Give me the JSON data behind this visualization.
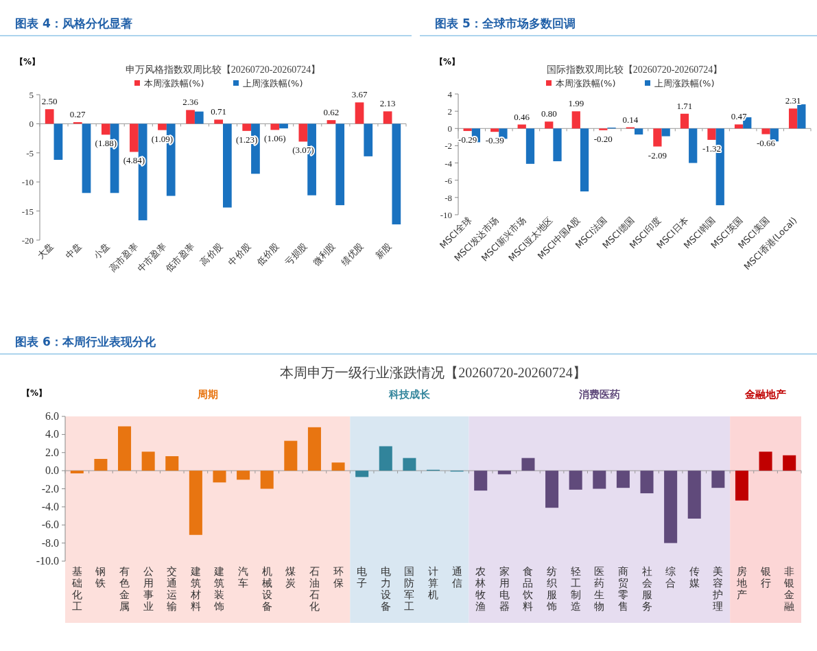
{
  "chart_data": [
    {
      "type": "bar",
      "title": "图表 4：风格分化显著",
      "subtitle": "申万风格指数双周比较【20260720-20260724】",
      "ylabel": "【%】",
      "legend": "top",
      "ylim": [
        -20,
        5
      ],
      "yticks": [
        -20,
        -15,
        -10,
        -5,
        0,
        5
      ],
      "categories": [
        "大盘",
        "中盘",
        "小盘",
        "高市盈率",
        "中市盈率",
        "低市盈率",
        "高价股",
        "中价股",
        "低价股",
        "亏损股",
        "微利股",
        "绩优股",
        "新股"
      ],
      "series": [
        {
          "name": "本周涨跌幅(%)",
          "color": "#f5333b",
          "values": [
            2.5,
            0.27,
            -1.88,
            -4.84,
            -1.09,
            2.36,
            0.71,
            -1.23,
            -1.06,
            -3.07,
            0.62,
            3.67,
            2.13
          ],
          "value_labels": [
            "2.50",
            "0.27",
            "(1.88)",
            "(4.84)",
            "(1.09)",
            "2.36",
            "0.71",
            "(1.23)",
            "(1.06)",
            "(3.07)",
            "0.62",
            "3.67",
            "2.13"
          ]
        },
        {
          "name": "上周涨跌幅(%)",
          "color": "#1a72c0",
          "values": [
            -6.2,
            -11.9,
            -11.9,
            -16.6,
            -12.4,
            2.1,
            -14.4,
            -8.6,
            -0.8,
            -12.3,
            -14.0,
            -5.6,
            -17.3
          ]
        }
      ]
    },
    {
      "type": "bar",
      "title": "图表 5：全球市场多数回调",
      "subtitle": "国际指数双周比较【20260720-20260724】",
      "ylabel": "【%】",
      "legend": "top",
      "ylim": [
        -10,
        4
      ],
      "yticks": [
        -10,
        -8,
        -6,
        -4,
        -2,
        0,
        2,
        4
      ],
      "categories": [
        "MSCI全球",
        "MSCI发达市场",
        "MSCI新兴市场",
        "MSCI亚太地区",
        "MSCI中国A股",
        "MSCI法国",
        "MSCI德国",
        "MSCI印度",
        "MSCI日本",
        "MSCI韩国",
        "MSCI英国",
        "MSCI美国",
        "MSCI香港(Local)"
      ],
      "series": [
        {
          "name": "本周涨跌幅(%)",
          "color": "#f5333b",
          "values": [
            -0.29,
            -0.39,
            0.46,
            0.8,
            1.99,
            -0.2,
            0.14,
            -2.09,
            1.71,
            -1.32,
            0.47,
            -0.66,
            2.31
          ],
          "value_labels": [
            "-0.29",
            "-0.39",
            "0.46",
            "0.80",
            "1.99",
            "-0.20",
            "0.14",
            "-2.09",
            "1.71",
            "-1.32",
            "0.47",
            "-0.66",
            "2.31"
          ]
        },
        {
          "name": "上周涨跌幅(%)",
          "color": "#1a72c0",
          "values": [
            -1.6,
            -1.2,
            -4.1,
            -3.8,
            -7.3,
            0.1,
            -0.7,
            -0.9,
            -4.0,
            -8.9,
            1.3,
            -1.5,
            2.8
          ]
        }
      ]
    },
    {
      "type": "bar",
      "title": "图表 6：本周行业表现分化",
      "subtitle": "本周申万一级行业涨跌情况【20260720-20260724】",
      "ylabel": "【%】",
      "ylim": [
        -10,
        6
      ],
      "yticks": [
        {
          "value": -10,
          "label": "-10.0"
        },
        {
          "value": -8,
          "label": "-8.0"
        },
        {
          "value": -6,
          "label": "-6.0"
        },
        {
          "value": -4,
          "label": "-4.0"
        },
        {
          "value": -2,
          "label": "-2.0"
        },
        {
          "value": 0,
          "label": "0.0"
        },
        {
          "value": 2,
          "label": "2.0"
        },
        {
          "value": 4,
          "label": "4.0"
        },
        {
          "value": 6,
          "label": "6.0"
        }
      ],
      "categories": [
        "基础化工",
        "钢铁",
        "有色金属",
        "公用事业",
        "交通运输",
        "建筑材料",
        "建筑装饰",
        "汽车",
        "机械设备",
        "煤炭",
        "石油石化",
        "环保",
        "电子",
        "电力设备",
        "国防军工",
        "计算机",
        "通信",
        "农林牧渔",
        "家用电器",
        "食品饮料",
        "纺织服饰",
        "轻工制造",
        "医药生物",
        "商贸零售",
        "社会服务",
        "综合",
        "传媒",
        "美容护理",
        "房地产",
        "银行",
        "非银金融"
      ],
      "values": [
        -0.3,
        1.3,
        4.9,
        2.1,
        1.6,
        -7.1,
        -1.3,
        -1.0,
        -2.0,
        3.3,
        4.8,
        0.9,
        -0.7,
        2.7,
        1.4,
        0.1,
        -0.1,
        -2.2,
        -0.4,
        1.4,
        -4.1,
        -2.1,
        -2.0,
        -1.9,
        -2.5,
        -8.0,
        -5.3,
        -1.9,
        -3.3,
        2.1,
        1.7
      ],
      "colors": [
        "#e87511",
        "#e87511",
        "#e87511",
        "#e87511",
        "#e87511",
        "#e87511",
        "#e87511",
        "#e87511",
        "#e87511",
        "#e87511",
        "#e87511",
        "#e87511",
        "#31849b",
        "#31849b",
        "#31849b",
        "#31849b",
        "#31849b",
        "#604a7b",
        "#604a7b",
        "#604a7b",
        "#604a7b",
        "#604a7b",
        "#604a7b",
        "#604a7b",
        "#604a7b",
        "#604a7b",
        "#604a7b",
        "#604a7b",
        "#c00000",
        "#c00000",
        "#c00000"
      ],
      "bands": [
        {
          "axis": "x",
          "from": "基础化工",
          "to": "环保",
          "label": "周期",
          "color": "#fde0dc"
        },
        {
          "axis": "x",
          "from": "电子",
          "to": "通信",
          "label": "科技成长",
          "color": "#d9e7f2"
        },
        {
          "axis": "x",
          "from": "农林牧渔",
          "to": "美容护理",
          "label": "消费医药",
          "color": "#e6ddf0"
        },
        {
          "axis": "x",
          "from": "房地产",
          "to": "非银金融",
          "label": "金融地产",
          "color": "#fcd6d6"
        }
      ]
    }
  ]
}
